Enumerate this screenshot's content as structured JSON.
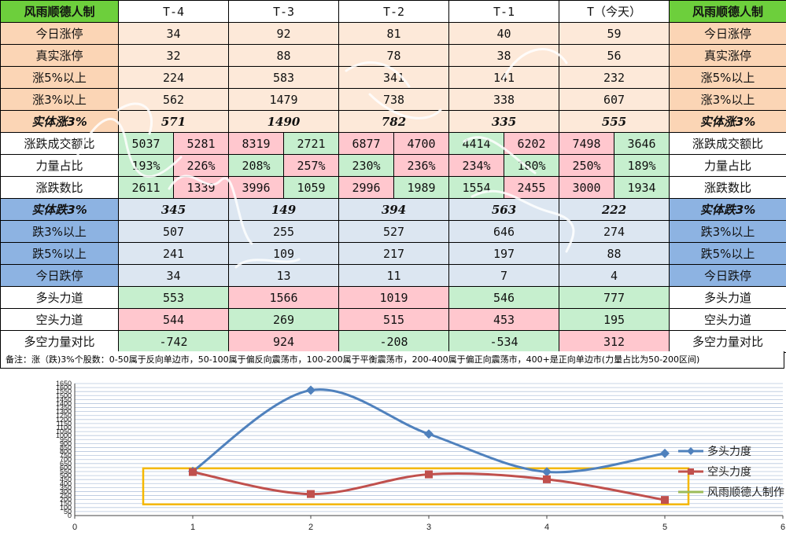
{
  "table": {
    "header": [
      "风雨顺德人制",
      "T-4",
      "T-3",
      "T-2",
      "T-1",
      "T（今天）",
      "风雨顺德人制"
    ],
    "single_rows": [
      {
        "label": "今日涨停",
        "values": [
          "34",
          "92",
          "81",
          "40",
          "59"
        ],
        "style": "peach"
      },
      {
        "label": "真实涨停",
        "values": [
          "32",
          "88",
          "78",
          "38",
          "56"
        ],
        "style": "peach"
      },
      {
        "label": "涨5%以上",
        "values": [
          "224",
          "583",
          "341",
          "141",
          "232"
        ],
        "style": "peach"
      },
      {
        "label": "涨3%以上",
        "values": [
          "562",
          "1479",
          "738",
          "338",
          "607"
        ],
        "style": "peach"
      },
      {
        "label": "实体涨3%",
        "values": [
          "571",
          "1490",
          "782",
          "335",
          "555"
        ],
        "style": "peach-bold"
      }
    ],
    "pair_rows": [
      {
        "label": "涨跌成交额比",
        "values": [
          [
            "5037",
            "5281"
          ],
          [
            "8319",
            "2721"
          ],
          [
            "6877",
            "4700"
          ],
          [
            "4414",
            "6202"
          ],
          [
            "7498",
            "3646"
          ]
        ],
        "colors": [
          [
            "g",
            "r"
          ],
          [
            "r",
            "g"
          ],
          [
            "r",
            "r"
          ],
          [
            "g",
            "r"
          ],
          [
            "r",
            "g"
          ]
        ]
      },
      {
        "label": "力量占比",
        "values": [
          [
            "193%",
            "226%"
          ],
          [
            "208%",
            "257%"
          ],
          [
            "230%",
            "236%"
          ],
          [
            "234%",
            "180%"
          ],
          [
            "250%",
            "189%"
          ]
        ],
        "colors": [
          [
            "g",
            "r"
          ],
          [
            "g",
            "r"
          ],
          [
            "g",
            "r"
          ],
          [
            "r",
            "g"
          ],
          [
            "r",
            "g"
          ]
        ]
      },
      {
        "label": "涨跌数比",
        "values": [
          [
            "2611",
            "1339"
          ],
          [
            "3996",
            "1059"
          ],
          [
            "2996",
            "1989"
          ],
          [
            "1554",
            "2455"
          ],
          [
            "3000",
            "1934"
          ]
        ],
        "colors": [
          [
            "g",
            "r"
          ],
          [
            "r",
            "g"
          ],
          [
            "r",
            "g"
          ],
          [
            "g",
            "r"
          ],
          [
            "r",
            "g"
          ]
        ]
      }
    ],
    "lower_rows": [
      {
        "label": "实体跌3%",
        "values": [
          "345",
          "149",
          "394",
          "563",
          "222"
        ],
        "style": "blue-bold"
      },
      {
        "label": "跌3%以上",
        "values": [
          "507",
          "255",
          "527",
          "646",
          "274"
        ],
        "style": "blue"
      },
      {
        "label": "跌5%以上",
        "values": [
          "241",
          "109",
          "217",
          "197",
          "88"
        ],
        "style": "blue"
      },
      {
        "label": "今日跌停",
        "values": [
          "34",
          "13",
          "11",
          "7",
          "4"
        ],
        "style": "blue"
      }
    ],
    "force_rows": [
      {
        "label": "多头力道",
        "values": [
          "553",
          "1566",
          "1019",
          "546",
          "777"
        ],
        "colors": [
          "g",
          "r",
          "r",
          "g",
          "g"
        ]
      },
      {
        "label": "空头力道",
        "values": [
          "544",
          "269",
          "515",
          "453",
          "195"
        ],
        "colors": [
          "r",
          "g",
          "r",
          "r",
          "g"
        ]
      },
      {
        "label": "多空力量对比",
        "values": [
          "-742",
          "924",
          "-208",
          "-534",
          "312"
        ],
        "colors": [
          "g",
          "r",
          "g",
          "g",
          "r"
        ]
      }
    ],
    "note": "备注：涨（跌)3%个股数：0-50属于反向单边市，50-100属于偏反向震荡市，100-200属于平衡震荡市，200-400属于偏正向震荡市，400+是正向单边市(力量占比为50-200区间)"
  },
  "chart_data": {
    "type": "line",
    "series": [
      {
        "name": "多头力度",
        "color": "#4f81bd",
        "marker": "diamond",
        "x": [
          1,
          2,
          3,
          4,
          5
        ],
        "values": [
          553,
          1566,
          1019,
          546,
          777
        ]
      },
      {
        "name": "空头力度",
        "color": "#c0504d",
        "marker": "square",
        "x": [
          1,
          2,
          3,
          4,
          5
        ],
        "values": [
          544,
          269,
          515,
          453,
          195
        ]
      },
      {
        "name": "风雨顺德人制作",
        "color": "#9bbb59",
        "marker": "none",
        "x": [],
        "values": []
      }
    ],
    "xlim": [
      0,
      6
    ],
    "xticks": [
      "0",
      "1",
      "2",
      "3",
      "4",
      "5",
      "6"
    ],
    "ylim": [
      0,
      1650
    ],
    "ytick_step": 50,
    "grid": true,
    "legend": "right",
    "highlight_box": {
      "color": "#f5b800",
      "x_from": 0.58,
      "x_to": 5.2,
      "y_from": 140,
      "y_to": 590
    }
  }
}
